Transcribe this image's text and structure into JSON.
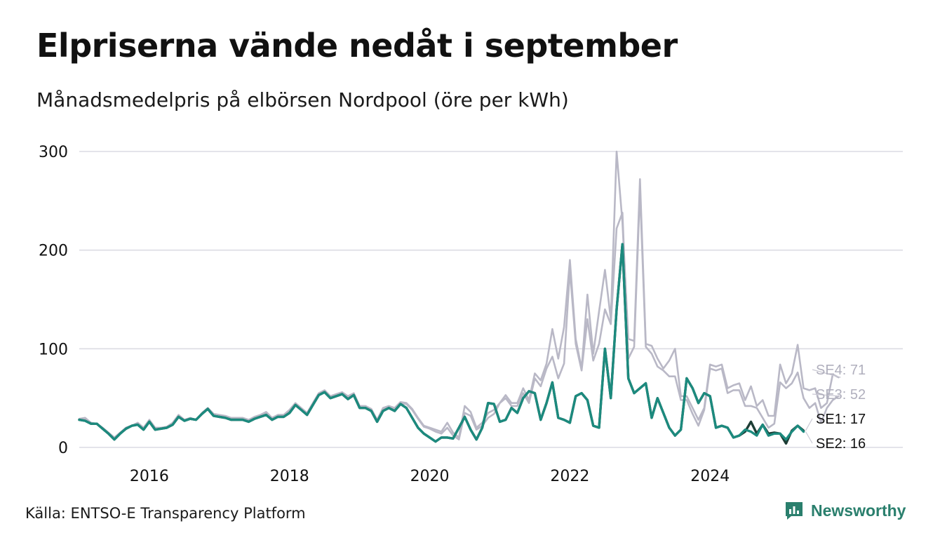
{
  "title": "Elpriserna vände nedåt i september",
  "subtitle": "Månadsmedelpris på elbörsen Nordpool (öre per kWh)",
  "source": "Källa: ENTSO-E Transparency Platform",
  "brand": {
    "name": "Newsworthy",
    "icon": "bar-chart-speech-bubble-icon",
    "color": "#2a7f6d"
  },
  "chart_data": {
    "type": "line",
    "title": "Elpriserna vände nedåt i september",
    "ylabel": "öre per kWh",
    "xlabel": "",
    "ylim": [
      0,
      300
    ],
    "yticks": [
      0,
      100,
      200,
      300
    ],
    "ytick_labels": [
      "0",
      "100",
      "200",
      "300"
    ],
    "xticks": [
      2016,
      2018,
      2020,
      2022,
      2024
    ],
    "xtick_labels": [
      "2016",
      "2018",
      "2020",
      "2022",
      "2024"
    ],
    "xlim": [
      2015.0,
      2026.75
    ],
    "x_start": 2015.0,
    "x_step_months": 1,
    "grid": true,
    "legend": "end-of-line labels",
    "series": [
      {
        "name": "SE4",
        "label": "SE4: 71",
        "color": "#b9b8c6",
        "values": [
          29,
          30,
          25,
          24,
          20,
          15,
          10,
          15,
          20,
          22,
          25,
          20,
          28,
          20,
          20,
          21,
          25,
          33,
          28,
          30,
          28,
          35,
          40,
          34,
          33,
          32,
          30,
          30,
          30,
          28,
          31,
          33,
          36,
          30,
          33,
          33,
          38,
          45,
          40,
          35,
          45,
          55,
          58,
          52,
          54,
          56,
          52,
          55,
          42,
          42,
          39,
          28,
          40,
          42,
          40,
          46,
          45,
          39,
          30,
          22,
          20,
          18,
          16,
          25,
          15,
          10,
          42,
          36,
          20,
          25,
          35,
          38,
          45,
          53,
          45,
          45,
          60,
          48,
          75,
          68,
          85,
          120,
          90,
          122,
          190,
          110,
          80,
          155,
          95,
          138,
          180,
          130,
          300,
          228,
          110,
          108,
          272,
          105,
          103,
          90,
          80,
          88,
          100,
          52,
          52,
          40,
          28,
          40,
          84,
          82,
          84,
          60,
          63,
          65,
          48,
          62,
          42,
          48,
          32,
          32,
          84,
          65,
          75,
          104,
          60,
          58,
          60,
          40,
          45,
          74,
          71
        ]
      },
      {
        "name": "SE3",
        "label": "SE3: 52",
        "color": "#b9b8c6",
        "values": [
          28,
          28,
          24,
          24,
          19,
          14,
          9,
          14,
          20,
          22,
          24,
          19,
          27,
          19,
          19,
          20,
          24,
          32,
          27,
          29,
          28,
          34,
          39,
          33,
          32,
          31,
          29,
          29,
          29,
          27,
          30,
          32,
          35,
          29,
          32,
          32,
          37,
          44,
          39,
          34,
          44,
          54,
          57,
          51,
          53,
          55,
          50,
          54,
          41,
          41,
          38,
          27,
          39,
          41,
          39,
          45,
          44,
          38,
          29,
          21,
          19,
          16,
          14,
          20,
          12,
          8,
          35,
          32,
          18,
          22,
          30,
          34,
          45,
          50,
          42,
          42,
          55,
          45,
          70,
          62,
          80,
          92,
          70,
          85,
          180,
          105,
          78,
          130,
          88,
          105,
          140,
          125,
          222,
          238,
          90,
          102,
          260,
          102,
          95,
          82,
          78,
          72,
          72,
          48,
          48,
          34,
          22,
          38,
          80,
          78,
          80,
          55,
          58,
          58,
          42,
          42,
          40,
          30,
          20,
          24,
          66,
          60,
          65,
          76,
          50,
          40,
          45,
          25,
          40,
          48,
          52
        ]
      },
      {
        "name": "SE1",
        "label": "SE1: 17",
        "color": "#1d3d35",
        "values": [
          28,
          27,
          24,
          24,
          19,
          14,
          8,
          14,
          19,
          22,
          23,
          18,
          26,
          18,
          19,
          20,
          23,
          31,
          27,
          29,
          28,
          34,
          39,
          32,
          31,
          30,
          28,
          28,
          28,
          26,
          29,
          31,
          33,
          28,
          31,
          31,
          35,
          43,
          38,
          33,
          43,
          53,
          56,
          50,
          52,
          54,
          49,
          53,
          40,
          40,
          37,
          26,
          37,
          40,
          37,
          44,
          40,
          30,
          20,
          14,
          10,
          6,
          10,
          10,
          9,
          20,
          31,
          18,
          8,
          20,
          45,
          44,
          26,
          28,
          40,
          35,
          50,
          57,
          55,
          28,
          45,
          66,
          30,
          28,
          25,
          52,
          55,
          48,
          22,
          20,
          100,
          50,
          140,
          206,
          70,
          55,
          60,
          65,
          30,
          50,
          35,
          20,
          12,
          18,
          70,
          60,
          45,
          55,
          52,
          20,
          22,
          20,
          10,
          12,
          16,
          26,
          14,
          23,
          14,
          15,
          14,
          4,
          17,
          22,
          17
        ]
      },
      {
        "name": "SE2",
        "label": "SE2: 16",
        "color": "#1c8a7e",
        "values": [
          28,
          27,
          24,
          24,
          19,
          14,
          8,
          14,
          19,
          22,
          23,
          18,
          26,
          18,
          19,
          20,
          23,
          31,
          27,
          29,
          28,
          34,
          39,
          32,
          31,
          30,
          28,
          28,
          28,
          26,
          29,
          31,
          33,
          28,
          31,
          31,
          35,
          43,
          38,
          33,
          43,
          53,
          56,
          50,
          52,
          54,
          49,
          53,
          40,
          40,
          37,
          26,
          37,
          40,
          37,
          44,
          40,
          30,
          20,
          14,
          10,
          6,
          10,
          10,
          9,
          20,
          31,
          18,
          8,
          20,
          45,
          44,
          26,
          28,
          40,
          35,
          50,
          57,
          55,
          28,
          45,
          66,
          30,
          28,
          25,
          52,
          55,
          48,
          22,
          20,
          100,
          50,
          140,
          206,
          70,
          55,
          60,
          65,
          30,
          50,
          35,
          20,
          12,
          18,
          70,
          60,
          45,
          55,
          52,
          20,
          22,
          20,
          10,
          12,
          18,
          16,
          12,
          23,
          12,
          14,
          14,
          8,
          16,
          22,
          16
        ]
      }
    ]
  }
}
